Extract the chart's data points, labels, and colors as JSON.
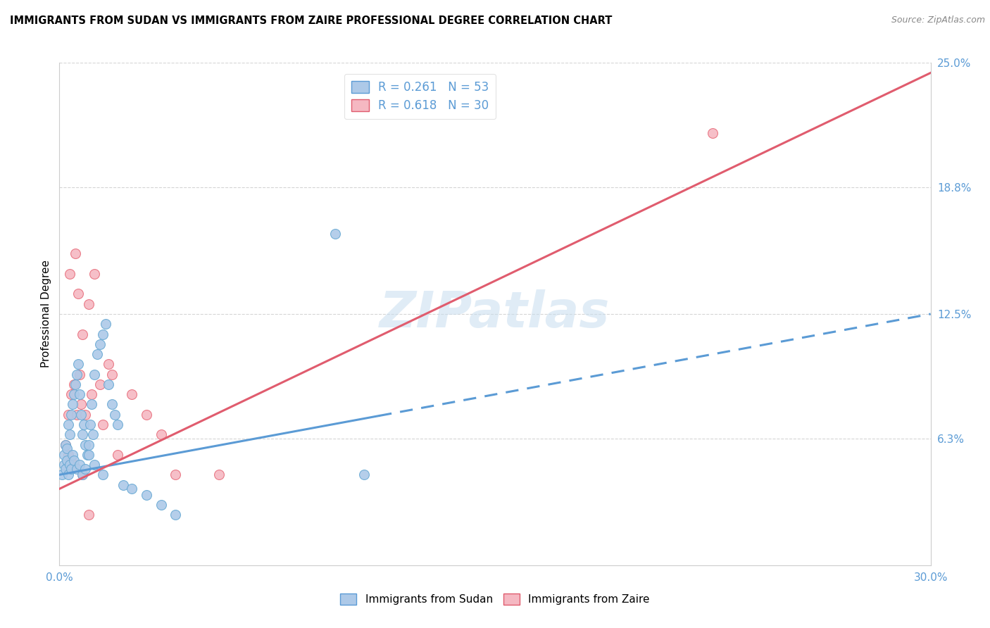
{
  "title": "IMMIGRANTS FROM SUDAN VS IMMIGRANTS FROM ZAIRE PROFESSIONAL DEGREE CORRELATION CHART",
  "source": "Source: ZipAtlas.com",
  "ylabel": "Professional Degree",
  "xlim": [
    0.0,
    30.0
  ],
  "ylim": [
    0.0,
    25.0
  ],
  "xtick_vals": [
    0.0,
    5.0,
    10.0,
    15.0,
    20.0,
    25.0,
    30.0
  ],
  "xtick_labels": [
    "0.0%",
    "",
    "",
    "",
    "",
    "",
    "30.0%"
  ],
  "yticks_right": [
    6.3,
    12.5,
    18.8,
    25.0
  ],
  "ytick_right_labels": [
    "6.3%",
    "12.5%",
    "18.8%",
    "25.0%"
  ],
  "series_sudan": {
    "name": "Immigrants from Sudan",
    "color": "#adc9e8",
    "edge_color": "#6aaad4",
    "line_color": "#5b9bd5",
    "R": 0.261,
    "N": 53,
    "x": [
      0.15,
      0.2,
      0.25,
      0.3,
      0.35,
      0.4,
      0.45,
      0.5,
      0.55,
      0.6,
      0.65,
      0.7,
      0.75,
      0.8,
      0.85,
      0.9,
      0.95,
      1.0,
      1.05,
      1.1,
      1.15,
      1.2,
      1.3,
      1.4,
      1.5,
      1.6,
      1.7,
      1.8,
      1.9,
      2.0,
      0.1,
      0.15,
      0.2,
      0.25,
      0.3,
      0.35,
      0.4,
      0.45,
      0.5,
      0.6,
      0.7,
      0.8,
      0.9,
      1.0,
      1.2,
      1.5,
      2.2,
      2.5,
      3.0,
      3.5,
      4.0,
      9.5,
      10.5
    ],
    "y": [
      5.5,
      6.0,
      5.8,
      7.0,
      6.5,
      7.5,
      8.0,
      8.5,
      9.0,
      9.5,
      10.0,
      8.5,
      7.5,
      6.5,
      7.0,
      6.0,
      5.5,
      6.0,
      7.0,
      8.0,
      6.5,
      9.5,
      10.5,
      11.0,
      11.5,
      12.0,
      9.0,
      8.0,
      7.5,
      7.0,
      4.5,
      5.0,
      4.8,
      5.2,
      4.5,
      5.0,
      4.8,
      5.5,
      5.2,
      4.8,
      5.0,
      4.5,
      4.8,
      5.5,
      5.0,
      4.5,
      4.0,
      3.8,
      3.5,
      3.0,
      2.5,
      16.5,
      4.5
    ]
  },
  "series_zaire": {
    "name": "Immigrants from Zaire",
    "color": "#f5b8c2",
    "edge_color": "#e8707e",
    "line_color": "#e05c6e",
    "R": 0.618,
    "N": 30,
    "x": [
      0.2,
      0.3,
      0.35,
      0.4,
      0.5,
      0.55,
      0.6,
      0.65,
      0.7,
      0.75,
      0.8,
      0.9,
      1.0,
      1.1,
      1.2,
      1.4,
      1.5,
      1.7,
      1.8,
      2.0,
      2.5,
      3.0,
      3.5,
      4.0,
      0.3,
      0.5,
      0.8,
      1.0,
      5.5,
      22.5
    ],
    "y": [
      6.0,
      7.5,
      14.5,
      8.5,
      9.0,
      15.5,
      7.5,
      13.5,
      9.5,
      8.0,
      11.5,
      7.5,
      13.0,
      8.5,
      14.5,
      9.0,
      7.0,
      10.0,
      9.5,
      5.5,
      8.5,
      7.5,
      6.5,
      4.5,
      5.5,
      5.0,
      4.5,
      2.5,
      4.5,
      21.5
    ]
  },
  "sudan_line": {
    "x0": 0.0,
    "y0": 4.5,
    "x1": 30.0,
    "y1": 12.5
  },
  "zaire_line": {
    "x0": 0.0,
    "y0": 3.8,
    "x1": 30.0,
    "y1": 24.5
  },
  "sudan_solid_end": 11.0,
  "watermark": "ZIPatlas",
  "title_fontsize": 10.5,
  "tick_color": "#5b9bd5",
  "grid_color": "#d5d5d5",
  "marker_size": 100,
  "background_color": "#ffffff"
}
